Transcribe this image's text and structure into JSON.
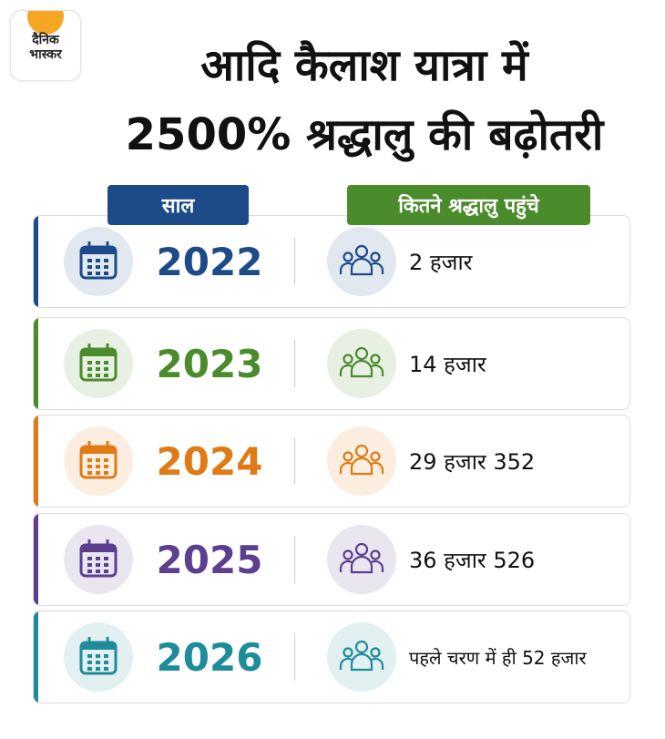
{
  "header": {
    "logo": [
      "दैनिक",
      "भास्कर"
    ],
    "title": [
      "आदि कैलाश यात्रा में",
      "2500% श्रद्धालु की बढ़ोतरी"
    ]
  },
  "table": {
    "columns": [
      {
        "label": "साल",
        "color": "#1d4b8a"
      },
      {
        "label": "कितने श्रद्धालु पहुंचे",
        "color": "#4a8b2c"
      }
    ],
    "rows": [
      {
        "year": "2022",
        "count": "2 हजार",
        "color": "#1d4b8a"
      },
      {
        "year": "2023",
        "count": "14 हजार",
        "color": "#4a8b2c"
      },
      {
        "year": "2024",
        "count": "29 हजार 352",
        "color": "#e07a14"
      },
      {
        "year": "2025",
        "count": "36 हजार 526",
        "color": "#5c3f8e"
      },
      {
        "year": "2026",
        "count": "पहले चरण में ही 52 हजार",
        "color": "#1e8c9a"
      }
    ]
  }
}
